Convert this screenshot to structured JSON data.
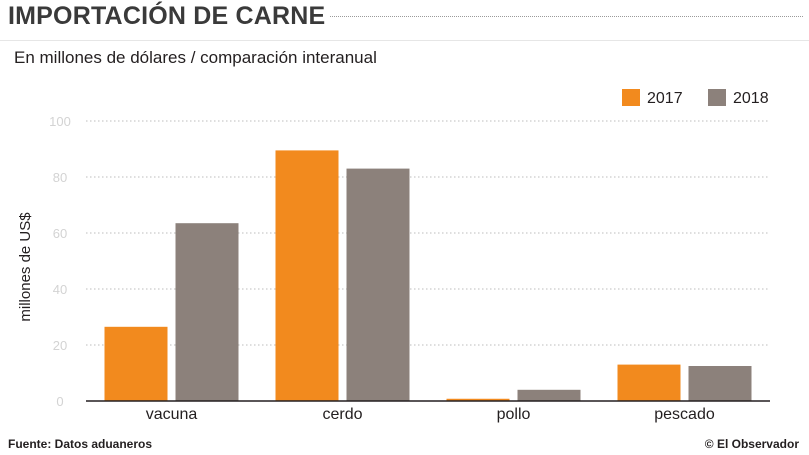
{
  "title": "IMPORTACIÓN DE CARNE",
  "subtitle": "En millones de dólares / comparación interanual",
  "footer": {
    "source": "Fuente: Datos aduaneros",
    "credit": "© El Observador"
  },
  "colors": {
    "s2017": "#f28a1e",
    "s2018": "#8c817b"
  },
  "chart_data": {
    "type": "bar",
    "categories": [
      "vacuna",
      "cerdo",
      "pollo",
      "pescado"
    ],
    "series": [
      {
        "name": "2017",
        "values": [
          26.5,
          89.5,
          0.8,
          13
        ]
      },
      {
        "name": "2018",
        "values": [
          63.5,
          83,
          4,
          12.5
        ]
      }
    ],
    "ylabel": "millones de US$",
    "ylim": [
      0,
      100
    ],
    "yticks": [
      0,
      20,
      40,
      60,
      80,
      100
    ],
    "grid": true,
    "legend": "top-right"
  }
}
